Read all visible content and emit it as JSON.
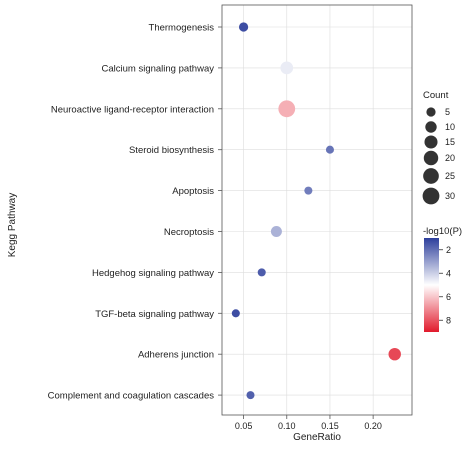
{
  "chart_data": {
    "type": "scatter",
    "title": "",
    "xlabel": "GeneRatio",
    "ylabel": "Kegg Pathway",
    "xlim": [
      0.025,
      0.245
    ],
    "xticks": [
      0.05,
      0.1,
      0.15,
      0.2
    ],
    "xtick_labels": [
      "0.05",
      "0.10",
      "0.15",
      "0.20"
    ],
    "grid": true,
    "points": [
      {
        "pathway": "Thermogenesis",
        "gene_ratio": 0.05,
        "count": 5,
        "neg_log10_p": 1.3
      },
      {
        "pathway": "Calcium signaling pathway",
        "gene_ratio": 0.1,
        "count": 14,
        "neg_log10_p": 4.6
      },
      {
        "pathway": "Neuroactive ligand-receptor interaction",
        "gene_ratio": 0.1,
        "count": 30,
        "neg_log10_p": 6.4
      },
      {
        "pathway": "Steroid biosynthesis",
        "gene_ratio": 0.15,
        "count": 3,
        "neg_log10_p": 2.1
      },
      {
        "pathway": "Apoptosis",
        "gene_ratio": 0.125,
        "count": 3,
        "neg_log10_p": 2.3
      },
      {
        "pathway": "Necroptosis",
        "gene_ratio": 0.088,
        "count": 9,
        "neg_log10_p": 3.4
      },
      {
        "pathway": "Hedgehog signaling pathway",
        "gene_ratio": 0.071,
        "count": 3,
        "neg_log10_p": 1.6
      },
      {
        "pathway": "TGF-beta signaling pathway",
        "gene_ratio": 0.041,
        "count": 3,
        "neg_log10_p": 1.3
      },
      {
        "pathway": "Adherens junction",
        "gene_ratio": 0.225,
        "count": 13,
        "neg_log10_p": 8.2
      },
      {
        "pathway": "Complement and coagulation cascades",
        "gene_ratio": 0.058,
        "count": 3,
        "neg_log10_p": 1.7
      }
    ],
    "size_legend": {
      "title": "Count",
      "values": [
        5,
        10,
        15,
        20,
        25,
        30
      ],
      "labels": [
        "5",
        "10",
        "15",
        "20",
        "25",
        "30"
      ]
    },
    "color_legend": {
      "title": "-log10(P)",
      "range": [
        1,
        9
      ],
      "ticks": [
        2,
        4,
        6,
        8
      ],
      "tick_labels": [
        "2",
        "4",
        "6",
        "8"
      ],
      "low_color": "#2d3f9c",
      "mid_color": "#ffffff",
      "high_color": "#e11a2c"
    }
  }
}
